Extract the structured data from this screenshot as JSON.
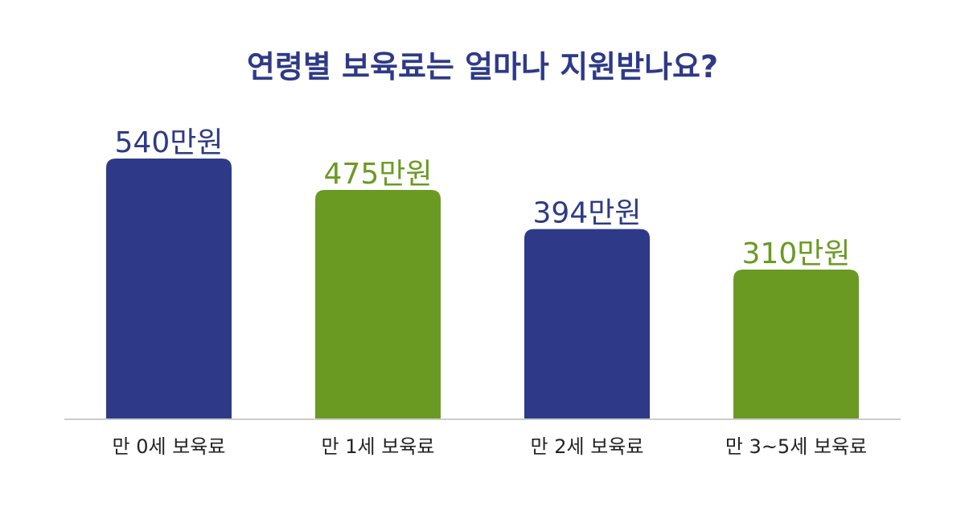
{
  "title": "연령별 보육료는 얼마나 지원받나요?",
  "colors": {
    "title": "#2e3a87",
    "navy": "#2e3a87",
    "green": "#6a9a22",
    "axis": "#cccccc",
    "category_text": "#222222"
  },
  "chart_data": {
    "type": "bar",
    "title": "연령별 보육료는 얼마나 지원받나요?",
    "categories": [
      "만 0세 보육료",
      "만 1세 보육료",
      "만 2세 보육료",
      "만 3~5세 보육료"
    ],
    "values": [
      540,
      475,
      394,
      310
    ],
    "value_labels": [
      "540만원",
      "475만원",
      "394만원",
      "310만원"
    ],
    "unit": "만원",
    "bar_colors": [
      "#2e3a87",
      "#6a9a22",
      "#2e3a87",
      "#6a9a22"
    ],
    "xlabel": "",
    "ylabel": "",
    "ylim": [
      0,
      600
    ],
    "grid": false,
    "legend": "none"
  }
}
